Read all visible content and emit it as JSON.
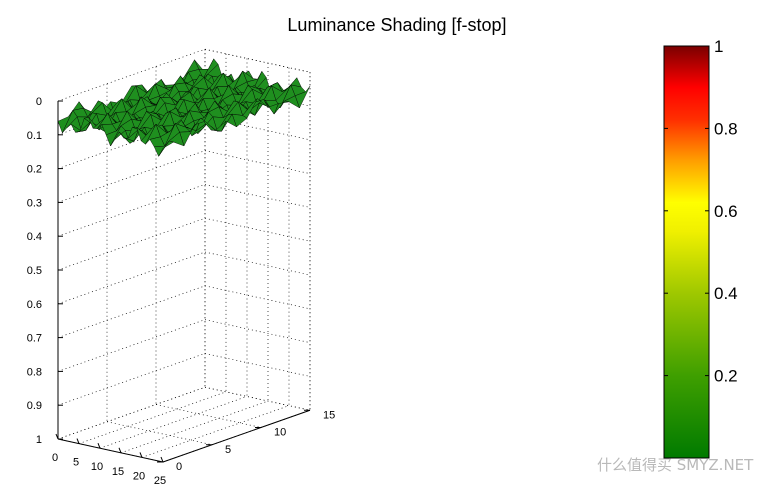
{
  "chart_data": {
    "type": "surface",
    "title": "Luminance Shading [f-stop]",
    "xlabel": "",
    "ylabel": "",
    "zlabel": "",
    "x_ticks": [
      "0",
      "5",
      "10",
      "15",
      "20",
      "25"
    ],
    "y_ticks": [
      "0",
      "5",
      "10",
      "15"
    ],
    "z_ticks": [
      "0",
      "0.1",
      "0.2",
      "0.3",
      "0.4",
      "0.5",
      "0.6",
      "0.7",
      "0.8",
      "0.9",
      "1"
    ],
    "xlim": [
      0,
      25
    ],
    "ylim": [
      0,
      15
    ],
    "zlim": [
      0,
      1
    ],
    "z_axis_reversed": true,
    "grid": true,
    "surface_approx_value": 0.05,
    "surface_value_range": [
      0.02,
      0.1
    ],
    "colormap": {
      "ticks": [
        "0.2",
        "0.4",
        "0.6",
        "0.8",
        "1"
      ],
      "range": [
        0,
        1
      ],
      "colors": [
        "#007a00",
        "#44a800",
        "#c8d800",
        "#ffff00",
        "#ffa000",
        "#ff2a00",
        "#ff0000",
        "#7a0000"
      ]
    },
    "surface_color": "#1f8f1f"
  },
  "watermark": "什么值得买 SMYZ.NET"
}
